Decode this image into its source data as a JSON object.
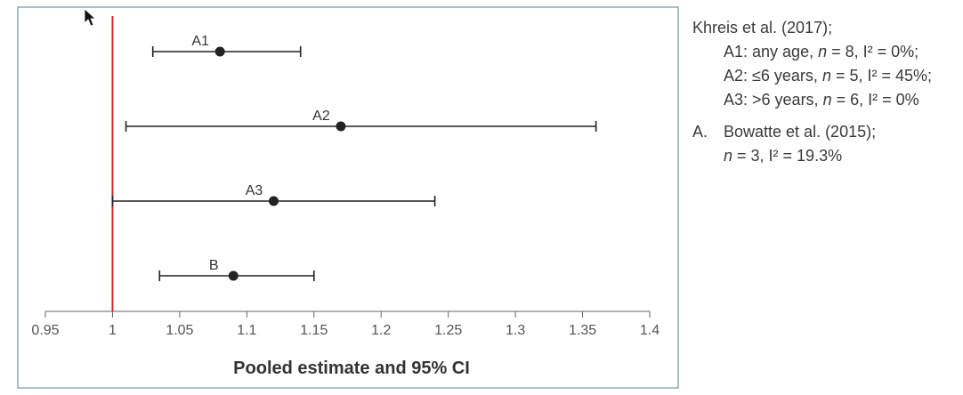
{
  "chart_data": {
    "type": "scatter",
    "subtype": "forest-plot",
    "xlabel": "Pooled estimate and 95% CI",
    "xlim": [
      0.95,
      1.4
    ],
    "xticks": [
      "0.95",
      "1",
      "1.05",
      "1.1",
      "1.15",
      "1.2",
      "1.25",
      "1.3",
      "1.35",
      "1.4"
    ],
    "reference_line": {
      "x": 1,
      "color": "#d62728"
    },
    "series": [
      {
        "name": "A1",
        "estimate": 1.08,
        "ci_low": 1.03,
        "ci_high": 1.14
      },
      {
        "name": "A2",
        "estimate": 1.17,
        "ci_low": 1.01,
        "ci_high": 1.36
      },
      {
        "name": "A3",
        "estimate": 1.12,
        "ci_low": 1.0,
        "ci_high": 1.24
      },
      {
        "name": "B",
        "estimate": 1.09,
        "ci_low": 1.035,
        "ci_high": 1.15
      }
    ],
    "grid": false,
    "legend_position": "right"
  },
  "legend": {
    "group1_title": "Khreis et al. (2017);",
    "group1_items": [
      {
        "label": "A1: any age,",
        "n": "n",
        "rest": " = 8, I² = 0%;"
      },
      {
        "label": "A2: ≤6 years,",
        "n": "n",
        "rest": " = 5, I² = 45%;"
      },
      {
        "label": "A3: >6 years,",
        "n": "n",
        "rest": " = 6, I² = 0%"
      }
    ],
    "group2_marker": "A.",
    "group2_title": "Bowatte et al. (2015);",
    "group2_n": "n",
    "group2_rest": " = 3, I² = 19.3%"
  },
  "colors": {
    "frame": "#5a7d8c",
    "ink": "#222222",
    "axis": "#666666",
    "ref": "#d62728"
  },
  "icons": {
    "cursor": "mouse-pointer-icon"
  }
}
